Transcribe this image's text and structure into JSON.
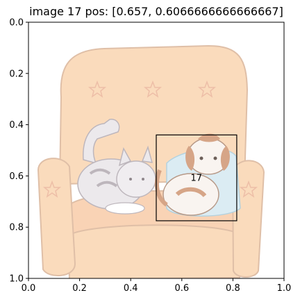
{
  "title": "image 17   pos: [0.657, 0.6066666666666667]",
  "chart_data": {
    "type": "scatter",
    "title": "image 17   pos: [0.657, 0.6066666666666667]",
    "xlabel": "",
    "ylabel": "",
    "xlim": [
      0.0,
      1.0
    ],
    "ylim": [
      1.0,
      0.0
    ],
    "y_inverted": true,
    "x_ticks": [
      0.0,
      0.2,
      0.4,
      0.6,
      0.8,
      1.0
    ],
    "y_ticks": [
      0.0,
      0.2,
      0.4,
      0.6,
      0.8,
      1.0
    ],
    "x_tick_labels": [
      "0.0",
      "0.2",
      "0.4",
      "0.6",
      "0.8",
      "1.0"
    ],
    "y_tick_labels": [
      "0.0",
      "0.2",
      "0.4",
      "0.6",
      "0.8",
      "1.0"
    ],
    "grid": false,
    "background_image": "armchair with cat and dog illustration",
    "annotations": [
      {
        "label": "17",
        "pos": [
          0.657,
          0.6066666666666667
        ],
        "box": {
          "x0": 0.5,
          "y0": 0.44,
          "x1": 0.815,
          "y1": 0.775
        }
      }
    ]
  },
  "colors": {
    "chair_fill": "#f9cfa6",
    "chair_stroke": "#d5aa8a",
    "chair_shadow": "#f2b995",
    "cat_fill": "#e6e2e6",
    "cat_stripe": "#a89ea6",
    "dog_fill": "#f7f1ec",
    "dog_spot": "#c98760",
    "pillow_fill": "#cfe6f0",
    "box_stroke": "#000000"
  }
}
